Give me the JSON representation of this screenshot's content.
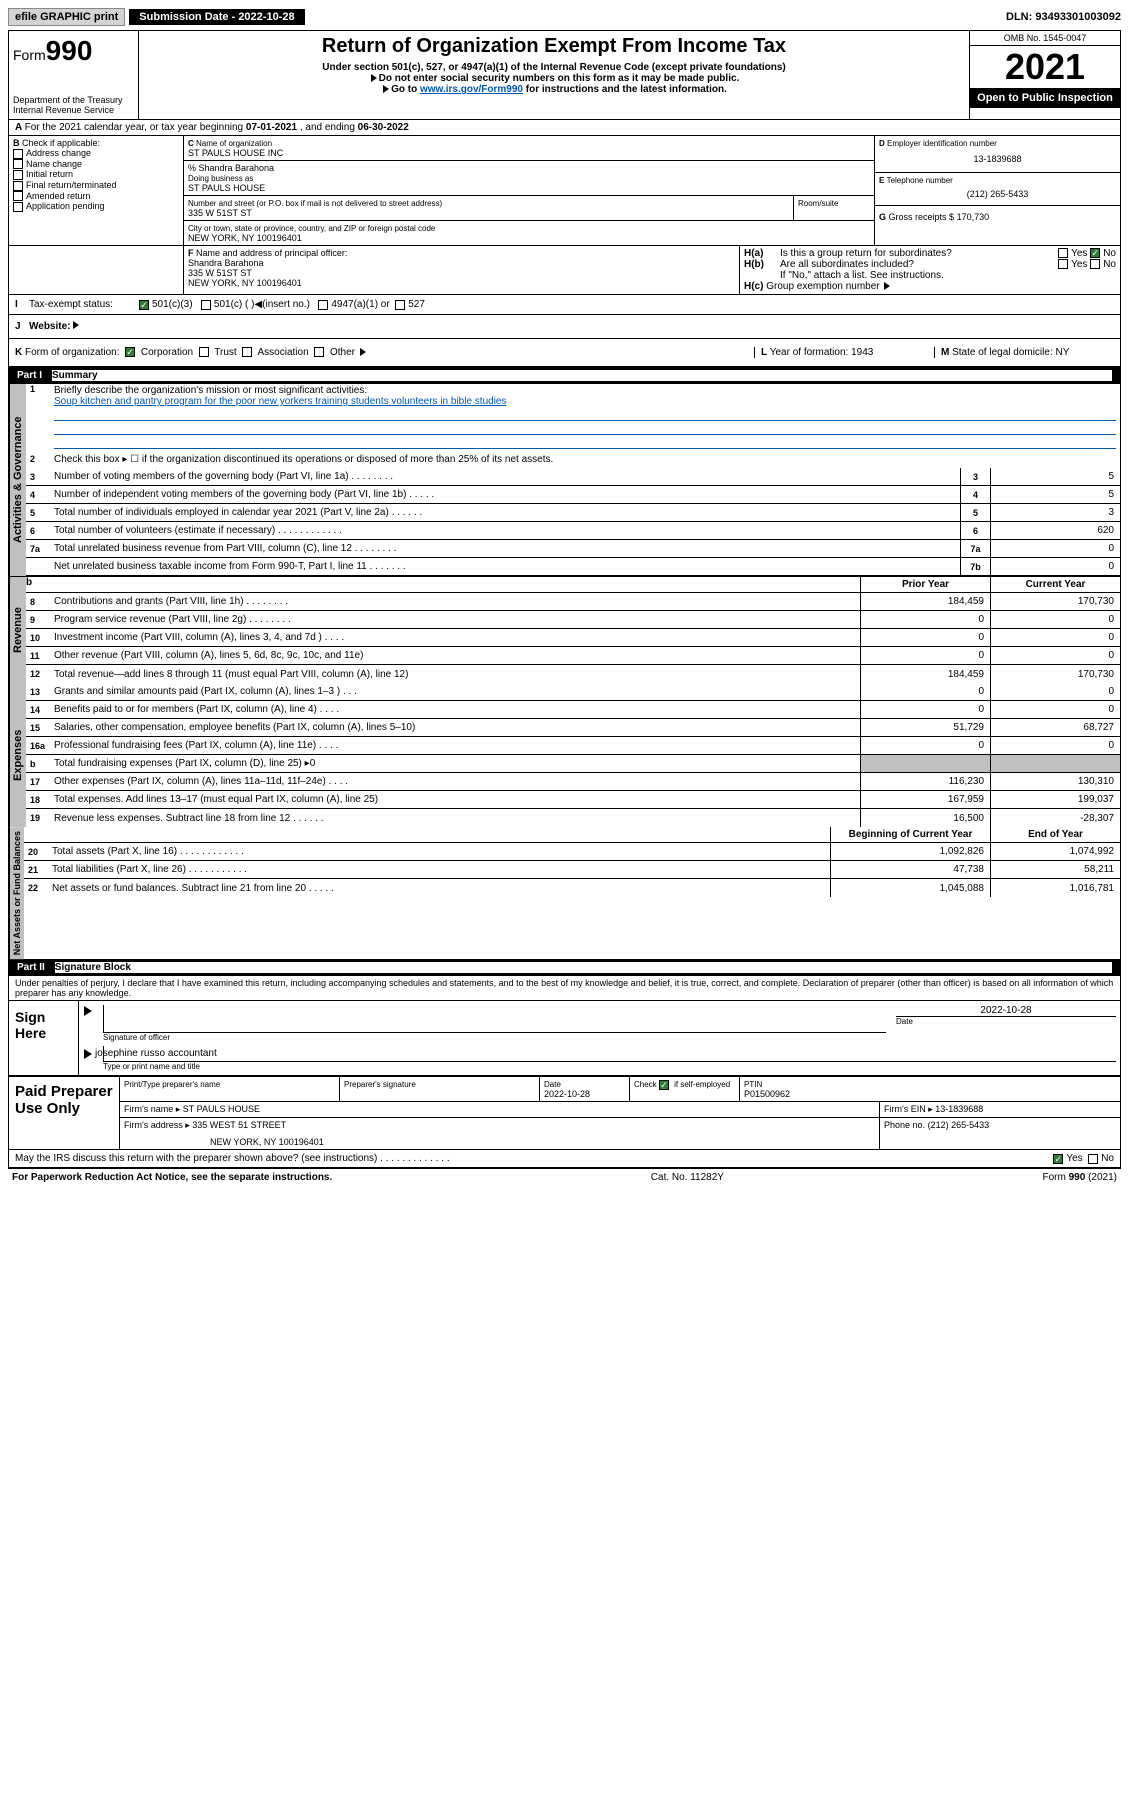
{
  "topbar": {
    "efile": "efile GRAPHIC print",
    "submission_label": "Submission Date - 2022-10-28",
    "dln": "DLN: 93493301003092"
  },
  "header": {
    "form_label": "Form",
    "form_num": "990",
    "dept": "Department of the Treasury",
    "irs": "Internal Revenue Service",
    "title": "Return of Organization Exempt From Income Tax",
    "sub1": "Under section 501(c), 527, or 4947(a)(1) of the Internal Revenue Code (except private foundations)",
    "sub2": "Do not enter social security numbers on this form as it may be made public.",
    "sub3_pre": "Go to ",
    "sub3_link": "www.irs.gov/Form990",
    "sub3_post": " for instructions and the latest information.",
    "omb": "OMB No. 1545-0047",
    "year": "2021",
    "inspection": "Open to Public Inspection"
  },
  "sectionA": {
    "text_pre": "For the 2021 calendar year, or tax year beginning ",
    "begin": "07-01-2021",
    "mid": " , and ending ",
    "end": "06-30-2022"
  },
  "sectionB": {
    "label": "Check if applicable:",
    "items": [
      "Address change",
      "Name change",
      "Initial return",
      "Final return/terminated",
      "Amended return",
      "Application pending"
    ]
  },
  "sectionC": {
    "name_label": "Name of organization",
    "name": "ST PAULS HOUSE INC",
    "care_of": "% Shandra Barahona",
    "dba_label": "Doing business as",
    "dba": "ST PAULS HOUSE",
    "street_label": "Number and street (or P.O. box if mail is not delivered to street address)",
    "street": "335 W 51ST ST",
    "room_label": "Room/suite",
    "city_label": "City or town, state or province, country, and ZIP or foreign postal code",
    "city": "NEW YORK, NY  100196401"
  },
  "sectionD": {
    "label": "Employer identification number",
    "val": "13-1839688"
  },
  "sectionE": {
    "label": "Telephone number",
    "val": "(212) 265-5433"
  },
  "sectionG": {
    "label": "Gross receipts $",
    "val": "170,730"
  },
  "sectionF": {
    "label": "Name and address of principal officer:",
    "name": "Shandra Barahona",
    "addr1": "335 W 51ST ST",
    "addr2": "NEW YORK, NY  100196401"
  },
  "sectionH": {
    "a": "Is this a group return for subordinates?",
    "b": "Are all subordinates included?",
    "note": "If \"No,\" attach a list. See instructions.",
    "c": "Group exemption number"
  },
  "yesno": {
    "yes": "Yes",
    "no": "No"
  },
  "sectionI": {
    "label": "Tax-exempt status:",
    "c3": "501(c)(3)",
    "c": "501(c) (   )",
    "insert": "(insert no.)",
    "a1": "4947(a)(1) or",
    "527": "527"
  },
  "sectionJ": {
    "label": "Website:"
  },
  "sectionK": {
    "label": "Form of organization:",
    "corp": "Corporation",
    "trust": "Trust",
    "assoc": "Association",
    "other": "Other"
  },
  "sectionL": {
    "label": "Year of formation:",
    "val": "1943"
  },
  "sectionM": {
    "label": "State of legal domicile:",
    "val": "NY"
  },
  "part1": {
    "label": "Part I",
    "title": "Summary",
    "q1": "Briefly describe the organization's mission or most significant activities:",
    "q1_ans": "Soup kitchen and pantry program for the poor new yorkers training students volunteers in bible studies",
    "q2": "Check this box ▸ ☐  if the organization discontinued its operations or disposed of more than 25% of its net assets.",
    "vlabel1": "Activities & Governance",
    "vlabel2": "Revenue",
    "vlabel3": "Expenses",
    "vlabel4": "Net Assets or Fund Balances",
    "prior": "Prior Year",
    "current": "Current Year",
    "begin": "Beginning of Current Year",
    "end": "End of Year",
    "rows_gov": [
      {
        "n": "3",
        "d": "Number of voting members of the governing body (Part VI, line 1a)    .    .    .    .    .    .    .    .",
        "nc": "3",
        "v": "5"
      },
      {
        "n": "4",
        "d": "Number of independent voting members of the governing body (Part VI, line 1b)   .    .    .    .    .",
        "nc": "4",
        "v": "5"
      },
      {
        "n": "5",
        "d": "Total number of individuals employed in calendar year 2021 (Part V, line 2a)    .    .    .    .    .    .",
        "nc": "5",
        "v": "3"
      },
      {
        "n": "6",
        "d": "Total number of volunteers (estimate if necessary)   .    .    .    .    .    .    .    .    .    .    .    .",
        "nc": "6",
        "v": "620"
      },
      {
        "n": "7a",
        "d": "Total unrelated business revenue from Part VIII, column (C), line 12   .    .    .    .    .    .    .    .",
        "nc": "7a",
        "v": "0"
      },
      {
        "n": "",
        "d": "Net unrelated business taxable income from Form 990-T, Part I, line 11   .    .    .    .    .    .    .",
        "nc": "7b",
        "v": "0"
      }
    ],
    "rows_rev": [
      {
        "n": "8",
        "d": "Contributions and grants (Part VIII, line 1h)    .    .    .    .    .    .    .    .",
        "p": "184,459",
        "c": "170,730"
      },
      {
        "n": "9",
        "d": "Program service revenue (Part VIII, line 2g)    .    .    .    .    .    .    .    .",
        "p": "0",
        "c": "0"
      },
      {
        "n": "10",
        "d": "Investment income (Part VIII, column (A), lines 3, 4, and 7d )   .    .    .    .",
        "p": "0",
        "c": "0"
      },
      {
        "n": "11",
        "d": "Other revenue (Part VIII, column (A), lines 5, 6d, 8c, 9c, 10c, and 11e)",
        "p": "0",
        "c": "0"
      },
      {
        "n": "12",
        "d": "Total revenue—add lines 8 through 11 (must equal Part VIII, column (A), line 12)",
        "p": "184,459",
        "c": "170,730"
      }
    ],
    "rows_exp": [
      {
        "n": "13",
        "d": "Grants and similar amounts paid (Part IX, column (A), lines 1–3 )   .    .    .",
        "p": "0",
        "c": "0"
      },
      {
        "n": "14",
        "d": "Benefits paid to or for members (Part IX, column (A), line 4)   .    .    .    .",
        "p": "0",
        "c": "0"
      },
      {
        "n": "15",
        "d": "Salaries, other compensation, employee benefits (Part IX, column (A), lines 5–10)",
        "p": "51,729",
        "c": "68,727"
      },
      {
        "n": "16a",
        "d": "Professional fundraising fees (Part IX, column (A), line 11e)   .    .    .    .",
        "p": "0",
        "c": "0"
      },
      {
        "n": "b",
        "d": "Total fundraising expenses (Part IX, column (D), line 25) ▸0",
        "p": "",
        "c": "",
        "gray": true
      },
      {
        "n": "17",
        "d": "Other expenses (Part IX, column (A), lines 11a–11d, 11f–24e)   .    .    .    .",
        "p": "116,230",
        "c": "130,310"
      },
      {
        "n": "18",
        "d": "Total expenses. Add lines 13–17 (must equal Part IX, column (A), line 25)",
        "p": "167,959",
        "c": "199,037"
      },
      {
        "n": "19",
        "d": "Revenue less expenses. Subtract line 18 from line 12   .    .    .    .    .    .",
        "p": "16,500",
        "c": "-28,307"
      }
    ],
    "rows_net": [
      {
        "n": "20",
        "d": "Total assets (Part X, line 16)   .    .    .    .    .    .    .    .    .    .    .    .",
        "p": "1,092,826",
        "c": "1,074,992"
      },
      {
        "n": "21",
        "d": "Total liabilities (Part X, line 26)   .    .    .    .    .    .    .    .    .    .    .",
        "p": "47,738",
        "c": "58,211"
      },
      {
        "n": "22",
        "d": "Net assets or fund balances. Subtract line 21 from line 20   .    .    .    .    .",
        "p": "1,045,088",
        "c": "1,016,781"
      }
    ]
  },
  "part2": {
    "label": "Part II",
    "title": "Signature Block",
    "decl": "Under penalties of perjury, I declare that I have examined this return, including accompanying schedules and statements, and to the best of my knowledge and belief, it is true, correct, and complete. Declaration of preparer (other than officer) is based on all information of which preparer has any knowledge."
  },
  "sign": {
    "here": "Sign Here",
    "sig_officer": "Signature of officer",
    "date": "Date",
    "date_val": "2022-10-28",
    "name": "josephine russo  accountant",
    "name_label": "Type or print name and title"
  },
  "paid": {
    "label": "Paid Preparer Use Only",
    "print_label": "Print/Type preparer's name",
    "sig_label": "Preparer's signature",
    "date_label": "Date",
    "date_val": "2022-10-28",
    "check_label": "Check ☑ if self-employed",
    "ptin_label": "PTIN",
    "ptin": "P01500962",
    "firm_name_label": "Firm's name   ▸",
    "firm_name": "ST PAULS HOUSE",
    "firm_ein_label": "Firm's EIN ▸",
    "firm_ein": "13-1839688",
    "firm_addr_label": "Firm's address ▸",
    "firm_addr1": "335 WEST 51 STREET",
    "firm_addr2": "NEW YORK, NY  100196401",
    "phone_label": "Phone no.",
    "phone": "(212) 265-5433"
  },
  "discuss": {
    "q": "May the IRS discuss this return with the preparer shown above? (see instructions)   .    .    .    .    .    .    .    .    .    .    .    .    ."
  },
  "footer": {
    "left": "For Paperwork Reduction Act Notice, see the separate instructions.",
    "mid": "Cat. No. 11282Y",
    "right": "Form 990 (2021)"
  }
}
